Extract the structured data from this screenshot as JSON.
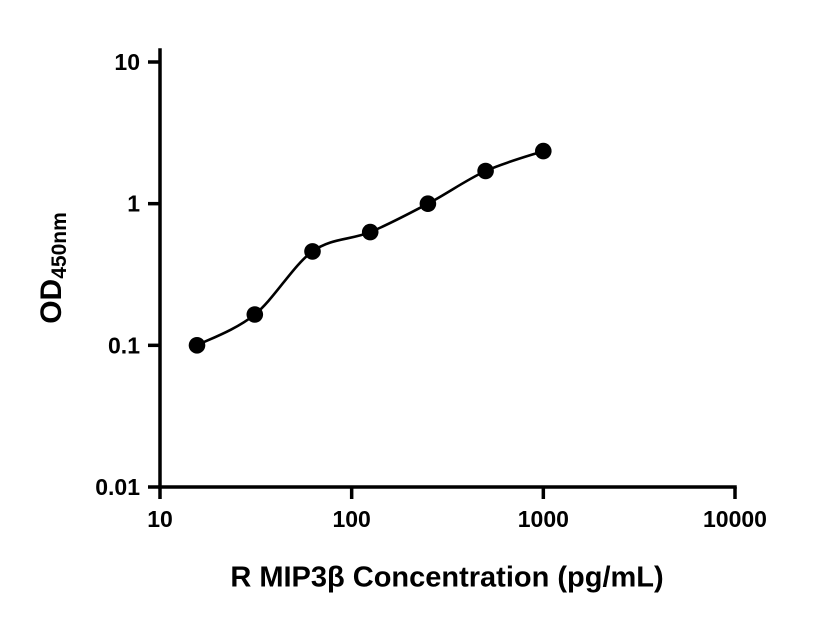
{
  "chart_data": {
    "type": "scatter",
    "title": "",
    "xlabel": "R MIP3β Concentration (pg/mL)",
    "ylabel_main": "OD",
    "ylabel_sub": "450nm",
    "x_scale": "log",
    "y_scale": "log",
    "xlim": [
      10,
      10000
    ],
    "ylim": [
      0.01,
      10
    ],
    "x_ticks": [
      10,
      100,
      1000,
      10000
    ],
    "x_tick_labels": [
      "10",
      "100",
      "1000",
      "10000"
    ],
    "y_ticks": [
      0.01,
      0.1,
      1,
      10
    ],
    "y_tick_labels": [
      "0.01",
      "0.1",
      "1",
      "10"
    ],
    "x": [
      15.6,
      31.25,
      62.5,
      125,
      250,
      500,
      1000
    ],
    "y": [
      0.1,
      0.165,
      0.46,
      0.63,
      1.0,
      1.7,
      2.35
    ],
    "curve": "smooth-fit-through-points",
    "marker_color": "#000000",
    "line_color": "#000000",
    "axis_color": "#000000",
    "grid": false,
    "legend": false
  }
}
